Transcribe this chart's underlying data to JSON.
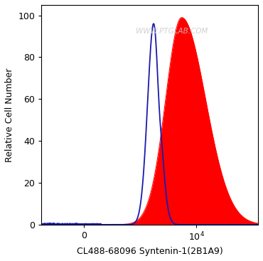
{
  "xlabel": "CL488-68096 Syntenin-1(2B1A9)",
  "ylabel": "Relative Cell Number",
  "ylim": [
    0,
    105
  ],
  "yticks": [
    0,
    20,
    40,
    60,
    80,
    100
  ],
  "watermark": "WWW.PTGLAB.COM",
  "watermark_color": "#c8c8c8",
  "background_color": "#ffffff",
  "blue_color": "#1a1aaa",
  "red_color": "#ff0000",
  "tick_fontsize": 9,
  "label_fontsize": 9,
  "symlog_linthresh": 300,
  "symlog_linscale": 0.4,
  "xmin": -600,
  "xmax": 120000
}
